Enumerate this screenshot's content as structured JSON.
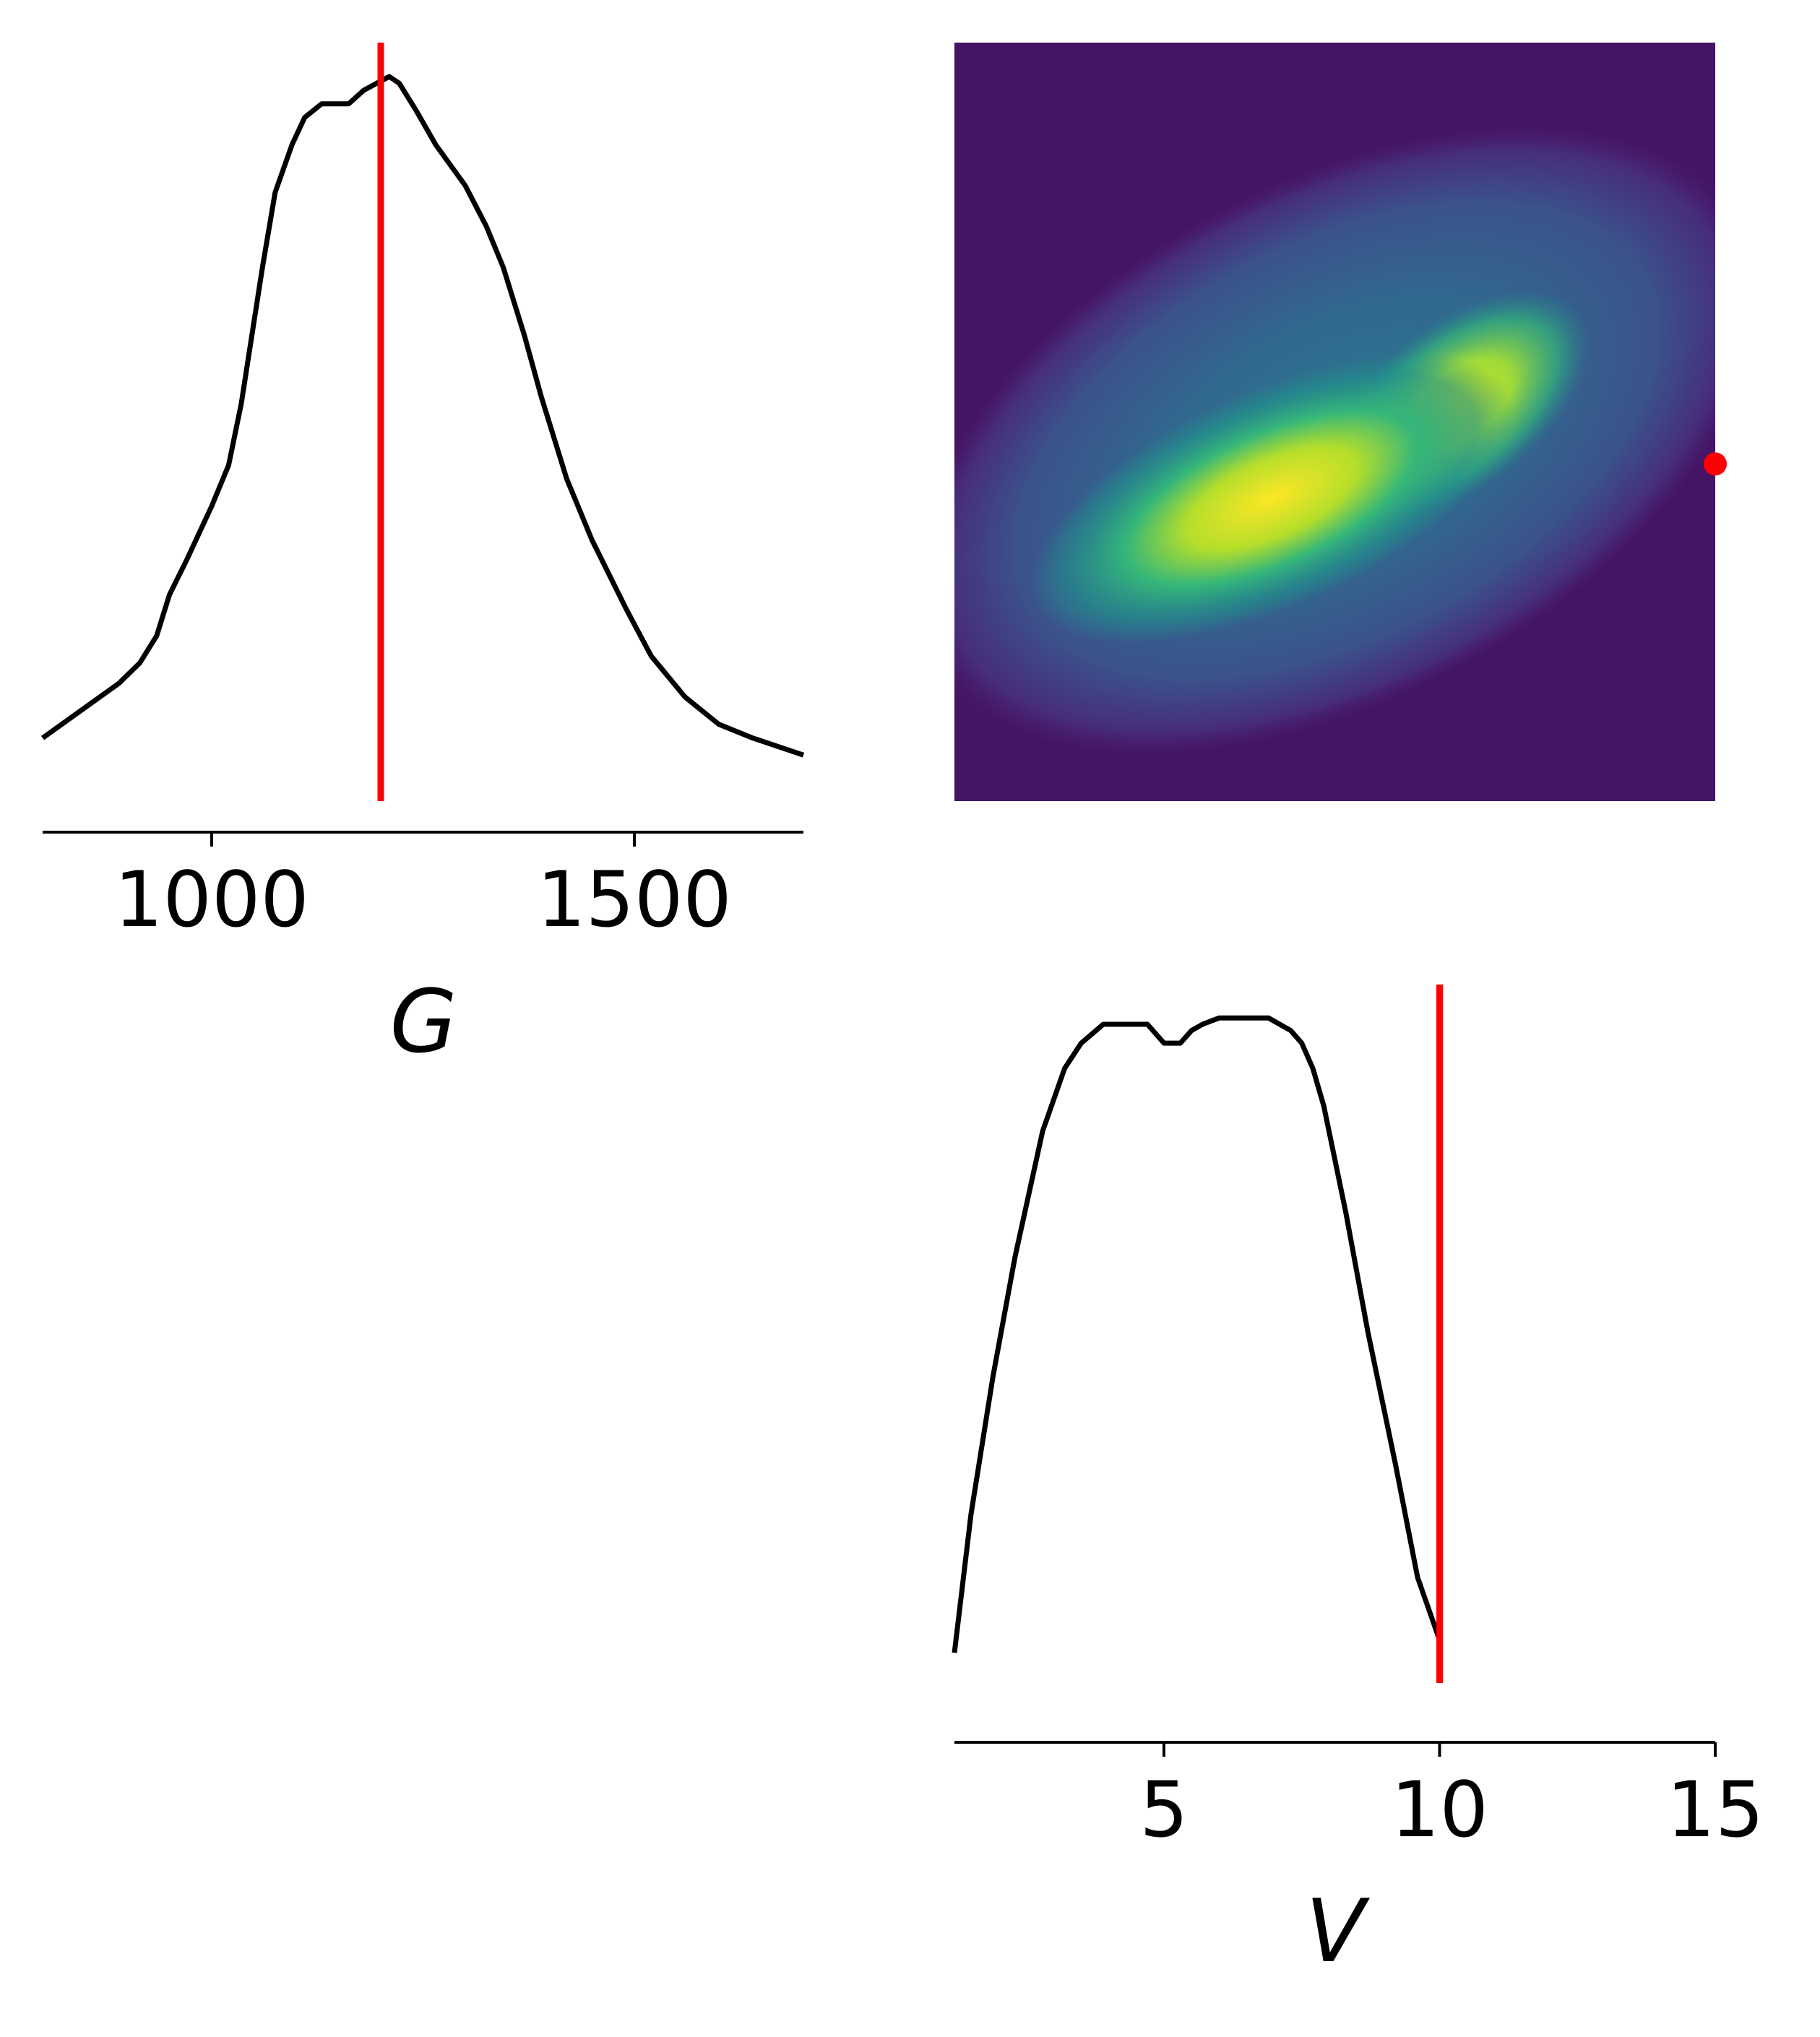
{
  "chart_data": [
    {
      "type": "line",
      "panel": "marginal",
      "xlabel": "G",
      "ylabel": "",
      "xlim": [
        800,
        1700
      ],
      "xticks": [
        1000,
        1500
      ],
      "xtick_labels": [
        "1000",
        "1500"
      ],
      "reference_value": 1200,
      "series": [
        {
          "x": [
            800,
            845,
            890,
            915,
            935,
            950,
            970,
            1000,
            1020,
            1035,
            1045,
            1060,
            1075,
            1095,
            1110,
            1130,
            1140,
            1162,
            1180,
            1210,
            1222,
            1242,
            1265,
            1300,
            1325,
            1345,
            1370,
            1390,
            1420,
            1450,
            1490,
            1520,
            1560,
            1600,
            1640,
            1700
          ],
          "y": [
            0.03,
            0.07,
            0.11,
            0.14,
            0.18,
            0.24,
            0.29,
            0.37,
            0.43,
            0.52,
            0.6,
            0.72,
            0.83,
            0.9,
            0.94,
            0.96,
            0.96,
            0.96,
            0.98,
            1.0,
            0.99,
            0.95,
            0.9,
            0.84,
            0.78,
            0.72,
            0.62,
            0.53,
            0.41,
            0.32,
            0.22,
            0.15,
            0.09,
            0.05,
            0.03,
            0.005
          ],
          "color": "#000000"
        }
      ],
      "ref_color": "#ff0000"
    },
    {
      "type": "heatmap",
      "panel": "joint",
      "xlabel": "",
      "ylabel": "",
      "colormap": "viridis",
      "xlim": [
        1,
        15
      ],
      "ylim": [
        800,
        1700
      ],
      "peak": {
        "x": 6.3,
        "y": 1190
      },
      "ridge_end": {
        "x": 10.2,
        "y": 1400
      },
      "point": {
        "x": 15,
        "y": 1200,
        "color": "#ff0000"
      }
    },
    {
      "type": "line",
      "panel": "marginal",
      "xlabel": "V",
      "ylabel": "",
      "xlim": [
        1.2,
        15
      ],
      "xticks": [
        5,
        10,
        15
      ],
      "xtick_labels": [
        "5",
        "10",
        "15"
      ],
      "reference_value": 10,
      "series": [
        {
          "x": [
            1.2,
            1.5,
            1.9,
            2.3,
            2.8,
            3.2,
            3.5,
            3.9,
            4.2,
            4.4,
            4.7,
            5.0,
            5.3,
            5.5,
            5.7,
            6.0,
            6.2,
            6.5,
            6.9,
            7.3,
            7.5,
            7.7,
            7.9,
            8.3,
            8.7,
            9.2,
            9.6,
            10.0
          ],
          "y": [
            0.0,
            0.22,
            0.44,
            0.63,
            0.83,
            0.93,
            0.97,
            1.0,
            1.0,
            1.0,
            1.0,
            0.97,
            0.97,
            0.99,
            1.0,
            1.01,
            1.01,
            1.01,
            1.01,
            0.99,
            0.97,
            0.93,
            0.87,
            0.7,
            0.51,
            0.3,
            0.12,
            0.02
          ],
          "color": "#000000"
        }
      ],
      "ref_color": "#ff0000"
    }
  ]
}
